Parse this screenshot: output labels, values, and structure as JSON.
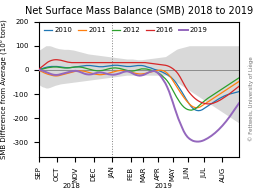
{
  "chart_data": {
    "type": "line",
    "title": "Net Surface Mass Balance (SMB) 2018 to 2019",
    "y_label": "SMB Difference from Average (10⁶ tons)",
    "x": [
      0,
      1,
      2,
      3,
      4,
      5,
      6,
      7,
      8,
      9,
      10,
      11,
      12,
      13,
      14,
      15,
      16,
      17,
      18,
      19,
      20,
      21,
      22,
      23,
      24,
      25,
      26,
      27,
      28,
      29,
      30,
      31,
      32,
      33,
      34,
      35,
      36,
      37,
      38,
      39,
      40,
      41,
      42,
      43,
      44,
      45,
      46,
      47,
      48,
      49,
      50,
      51,
      52,
      53,
      54,
      55,
      56,
      57,
      58,
      59,
      60,
      61,
      62,
      63,
      64,
      65,
      66,
      67,
      68,
      69,
      70,
      71,
      72,
      73,
      74,
      75,
      76,
      77,
      78,
      79,
      80,
      81,
      82,
      83,
      84,
      85,
      86,
      87,
      88,
      89,
      90,
      91,
      92,
      93,
      94,
      95,
      96,
      97,
      98,
      99,
      100,
      101,
      102,
      103,
      104,
      105,
      106,
      107,
      108,
      109
    ],
    "xlim": [
      0,
      109
    ],
    "xticks": [
      {
        "value": 0,
        "label": "SEP"
      },
      {
        "value": 10,
        "label": "OCT"
      },
      {
        "value": 20,
        "label": "NOV"
      },
      {
        "value": 30,
        "label": "DEC"
      },
      {
        "value": 40,
        "label": "JAN"
      },
      {
        "value": 50,
        "label": "FEB"
      },
      {
        "value": 57,
        "label": "MAR"
      },
      {
        "value": 65,
        "label": "APR"
      },
      {
        "value": 73,
        "label": "MAY"
      },
      {
        "value": 81,
        "label": "JUN"
      },
      {
        "value": 90,
        "label": "JUL"
      },
      {
        "value": 100,
        "label": "AUG"
      }
    ],
    "ylim": [
      -360,
      200
    ],
    "yticks": [
      -300,
      -200,
      -100,
      0,
      100,
      200
    ],
    "legend": "upper left",
    "band": {
      "color": "#c0c0c0",
      "upper": [
        80,
        85,
        90,
        95,
        100,
        100,
        100,
        98,
        95,
        92,
        90,
        88,
        87,
        86,
        85,
        85,
        85,
        84,
        83,
        82,
        80,
        78,
        76,
        74,
        72,
        70,
        68,
        66,
        65,
        64,
        63,
        62,
        61,
        60,
        59,
        58,
        57,
        56,
        55,
        54,
        53,
        52,
        51,
        50,
        49,
        48,
        47,
        46,
        45,
        45,
        45,
        45,
        44,
        43,
        42,
        42,
        42,
        43,
        44,
        45,
        46,
        47,
        48,
        49,
        50,
        51,
        52,
        53,
        54,
        55,
        60,
        65,
        70,
        75,
        80,
        85,
        88,
        90,
        92,
        94,
        96,
        98,
        100,
        100,
        100,
        100,
        100,
        100,
        100,
        100,
        100,
        100,
        100,
        100,
        100,
        100,
        100,
        100,
        100,
        100,
        100,
        100,
        100,
        100,
        100,
        100,
        100,
        100,
        100,
        100
      ],
      "lower": [
        -60,
        -65,
        -70,
        -72,
        -75,
        -75,
        -73,
        -70,
        -67,
        -64,
        -62,
        -60,
        -58,
        -57,
        -56,
        -55,
        -54,
        -53,
        -52,
        -51,
        -50,
        -49,
        -48,
        -47,
        -46,
        -45,
        -44,
        -43,
        -42,
        -41,
        -40,
        -39,
        -38,
        -37,
        -36,
        -35,
        -34,
        -33,
        -32,
        -31,
        -30,
        -29,
        -28,
        -27,
        -26,
        -25,
        -24,
        -23,
        -22,
        -22,
        -22,
        -22,
        -22,
        -22,
        -22,
        -22,
        -22,
        -22,
        -22,
        -22,
        -22,
        -22,
        -22,
        -22,
        -22,
        -22,
        -22,
        -22,
        -22,
        -22,
        -25,
        -30,
        -35,
        -40,
        -45,
        -50,
        -55,
        -60,
        -65,
        -70,
        -75,
        -80,
        -85,
        -90,
        -95,
        -100,
        -105,
        -110,
        -115,
        -120,
        -125,
        -130,
        -135,
        -140,
        -145,
        -150,
        -155,
        -160,
        -165,
        -170,
        -175,
        -180,
        -185,
        -190,
        -195,
        -200,
        -205,
        -210,
        -215,
        -220
      ]
    },
    "hlines": [
      0
    ],
    "vlines": [
      40
    ],
    "series": [
      {
        "name": "2010",
        "values": [
          2,
          3,
          5,
          8,
          10,
          12,
          13,
          14,
          14,
          14,
          14,
          13,
          12,
          11,
          10,
          9,
          9,
          9,
          10,
          11,
          12,
          13,
          14,
          15,
          16,
          17,
          18,
          18,
          18,
          17,
          16,
          15,
          14,
          13,
          13,
          13,
          14,
          15,
          16,
          17,
          18,
          19,
          19,
          19,
          18,
          17,
          16,
          15,
          14,
          14,
          14,
          15,
          16,
          17,
          18,
          18,
          18,
          17,
          15,
          12,
          10,
          8,
          5,
          2,
          0,
          -2,
          -5,
          -8,
          -12,
          -16,
          -20,
          -25,
          -30,
          -38,
          -46,
          -56,
          -68,
          -80,
          -92,
          -105,
          -118,
          -130,
          -142,
          -152,
          -160,
          -165,
          -168,
          -169,
          -168,
          -165,
          -160,
          -155,
          -150,
          -145,
          -140,
          -135,
          -130,
          -125,
          -120,
          -116,
          -112,
          -108,
          -105,
          -102,
          -100,
          -98,
          -96,
          -94,
          -92,
          -90
        ]
      },
      {
        "name": "2011",
        "values": [
          -2,
          -5,
          -8,
          -12,
          -15,
          -18,
          -20,
          -22,
          -24,
          -25,
          -25,
          -24,
          -22,
          -20,
          -18,
          -16,
          -14,
          -12,
          -10,
          -8,
          -6,
          -5,
          -4,
          -4,
          -5,
          -6,
          -8,
          -10,
          -12,
          -14,
          -16,
          -18,
          -19,
          -20,
          -20,
          -19,
          -18,
          -16,
          -14,
          -12,
          -10,
          -8,
          -6,
          -4,
          -3,
          -2,
          -2,
          -3,
          -5,
          -7,
          -9,
          -11,
          -13,
          -15,
          -16,
          -17,
          -17,
          -16,
          -15,
          -13,
          -11,
          -9,
          -7,
          -5,
          -3,
          -2,
          -1,
          -2,
          -4,
          -8,
          -14,
          -22,
          -32,
          -44,
          -56,
          -68,
          -80,
          -92,
          -103,
          -114,
          -124,
          -133,
          -141,
          -148,
          -153,
          -156,
          -157,
          -156,
          -153,
          -148,
          -143,
          -138,
          -133,
          -128,
          -123,
          -118,
          -113,
          -108,
          -103,
          -98,
          -93,
          -88,
          -83,
          -78,
          -73,
          -68,
          -63,
          -58,
          -53,
          -48
        ]
      },
      {
        "name": "2012",
        "values": [
          0,
          2,
          3,
          5,
          7,
          9,
          10,
          11,
          12,
          12,
          12,
          11,
          10,
          9,
          8,
          8,
          8,
          9,
          10,
          11,
          12,
          12,
          12,
          11,
          10,
          8,
          6,
          4,
          2,
          0,
          -2,
          -3,
          -4,
          -4,
          -3,
          -2,
          0,
          2,
          4,
          6,
          7,
          8,
          8,
          7,
          6,
          4,
          2,
          0,
          -2,
          -4,
          -5,
          -5,
          -4,
          -2,
          0,
          2,
          4,
          4,
          4,
          3,
          1,
          -1,
          -3,
          -5,
          -8,
          -12,
          -17,
          -23,
          -30,
          -37,
          -46,
          -57,
          -70,
          -84,
          -98,
          -112,
          -124,
          -136,
          -146,
          -154,
          -160,
          -164,
          -166,
          -167,
          -165,
          -162,
          -157,
          -150,
          -143,
          -136,
          -130,
          -124,
          -118,
          -113,
          -108,
          -103,
          -98,
          -93,
          -88,
          -83,
          -78,
          -73,
          -68,
          -63,
          -58,
          -53,
          -48,
          -43,
          -38,
          -33
        ]
      },
      {
        "name": "2016",
        "values": [
          3,
          8,
          14,
          20,
          26,
          32,
          36,
          39,
          41,
          42,
          42,
          41,
          40,
          38,
          36,
          34,
          32,
          31,
          30,
          30,
          30,
          30,
          30,
          30,
          30,
          30,
          30,
          30,
          30,
          30,
          30,
          30,
          30,
          30,
          30,
          30,
          30,
          30,
          30,
          30,
          30,
          30,
          30,
          30,
          30,
          30,
          30,
          30,
          30,
          30,
          30,
          30,
          30,
          30,
          30,
          30,
          30,
          30,
          30,
          29,
          28,
          27,
          26,
          25,
          24,
          23,
          22,
          21,
          20,
          19,
          17,
          14,
          10,
          5,
          -1,
          -8,
          -18,
          -30,
          -44,
          -58,
          -72,
          -84,
          -94,
          -103,
          -111,
          -118,
          -124,
          -129,
          -133,
          -136,
          -138,
          -140,
          -141,
          -141,
          -140,
          -138,
          -135,
          -132,
          -128,
          -124,
          -119,
          -114,
          -109,
          -104,
          -98,
          -92,
          -86,
          -80,
          -74,
          -68
        ]
      },
      {
        "name": "2019",
        "values": [
          0,
          -1,
          -3,
          -6,
          -9,
          -12,
          -15,
          -18,
          -20,
          -21,
          -21,
          -20,
          -18,
          -16,
          -14,
          -12,
          -10,
          -8,
          -6,
          -5,
          -4,
          -5,
          -7,
          -10,
          -13,
          -16,
          -18,
          -19,
          -19,
          -18,
          -16,
          -14,
          -12,
          -11,
          -11,
          -12,
          -14,
          -16,
          -18,
          -19,
          -20,
          -20,
          -19,
          -17,
          -15,
          -12,
          -9,
          -7,
          -6,
          -7,
          -10,
          -14,
          -18,
          -21,
          -23,
          -24,
          -23,
          -21,
          -18,
          -14,
          -10,
          -7,
          -5,
          -5,
          -8,
          -14,
          -22,
          -32,
          -44,
          -56,
          -72,
          -90,
          -112,
          -134,
          -158,
          -180,
          -202,
          -220,
          -238,
          -255,
          -268,
          -278,
          -285,
          -290,
          -294,
          -296,
          -297,
          -297,
          -296,
          -294,
          -291,
          -287,
          -283,
          -278,
          -273,
          -267,
          -261,
          -254,
          -247,
          -239,
          -231,
          -222,
          -213,
          -203,
          -193,
          -182,
          -171,
          -160,
          -149,
          -138
        ]
      }
    ],
    "annotations": [
      {
        "text": "2018",
        "x": 18
      },
      {
        "text": "2019",
        "x": 68
      },
      {
        "text": "© Fettweis, University of Liège"
      }
    ]
  }
}
